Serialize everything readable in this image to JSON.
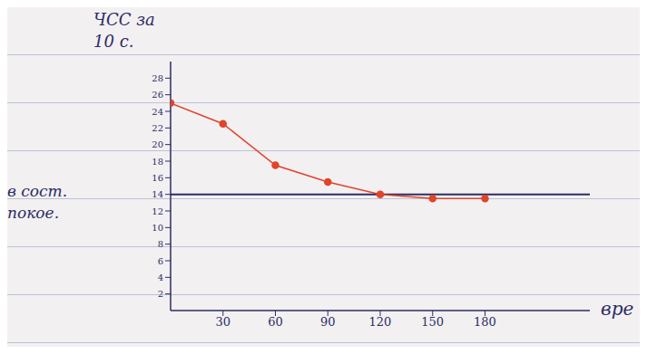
{
  "chart_data": {
    "type": "line",
    "y_label": "ЧСС за 10 с.",
    "x_label": "вре",
    "x": [
      0,
      30,
      60,
      90,
      120,
      150,
      180
    ],
    "values": [
      25,
      22.5,
      17.5,
      15.5,
      14,
      13.5,
      13.5
    ],
    "color": "#e0442a",
    "marker": "circle",
    "line_style": "solid",
    "annotations": [
      {
        "text": "в сост. покое.",
        "y": 14,
        "color": "#2b2d63"
      }
    ],
    "xlim": [
      0,
      240
    ],
    "xticks": [
      30,
      60,
      90,
      120,
      150,
      180
    ],
    "ylim": [
      0,
      30
    ],
    "yticks": [
      2,
      4,
      6,
      8,
      10,
      12,
      14,
      16,
      18,
      20,
      22,
      24,
      26,
      28
    ],
    "grid": false
  }
}
